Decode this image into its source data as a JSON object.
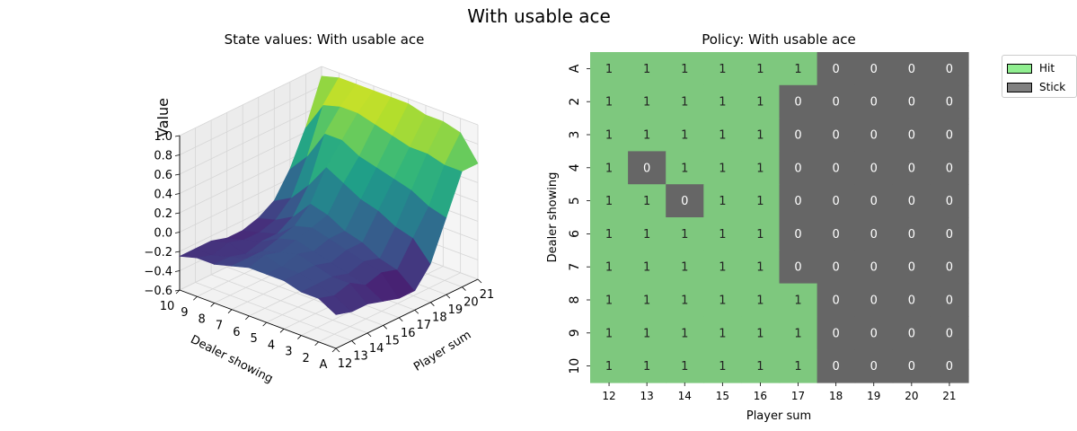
{
  "figure": {
    "suptitle": "With usable ace"
  },
  "chart_data": [
    {
      "type": "surface",
      "title": "State values: With usable ace",
      "xlabel": "Player sum",
      "ylabel": "Dealer showing",
      "zlabel": "Value",
      "colormap": "viridis",
      "x_ticks": [
        "12",
        "13",
        "14",
        "15",
        "16",
        "17",
        "18",
        "19",
        "20",
        "21"
      ],
      "y_ticks": [
        "A",
        "2",
        "3",
        "4",
        "5",
        "6",
        "7",
        "8",
        "9",
        "10"
      ],
      "z_ticks": [
        "−0.6",
        "−0.4",
        "−0.2",
        "0.0",
        "0.2",
        "0.4",
        "0.6",
        "0.8",
        "1.0"
      ],
      "zlim": [
        -0.6,
        1.0
      ],
      "values": [
        [
          -0.25,
          -0.3,
          -0.3,
          -0.35,
          -0.4,
          -0.4,
          -0.2,
          0.2,
          0.6,
          0.6
        ],
        [
          -0.15,
          -0.2,
          -0.15,
          -0.25,
          -0.2,
          -0.25,
          0.0,
          0.25,
          0.6,
          0.85
        ],
        [
          -0.15,
          -0.15,
          -0.15,
          -0.2,
          -0.15,
          -0.2,
          0.05,
          0.35,
          0.65,
          0.9
        ],
        [
          -0.1,
          -0.1,
          -0.1,
          -0.15,
          -0.1,
          -0.1,
          0.15,
          0.4,
          0.65,
          0.9
        ],
        [
          -0.1,
          -0.1,
          -0.05,
          -0.1,
          -0.05,
          -0.05,
          0.2,
          0.45,
          0.7,
          0.95
        ],
        [
          -0.1,
          -0.05,
          -0.1,
          -0.05,
          0.0,
          0.05,
          0.3,
          0.5,
          0.75,
          0.95
        ],
        [
          -0.15,
          -0.15,
          -0.15,
          -0.1,
          -0.05,
          0.1,
          0.4,
          0.6,
          0.8,
          0.95
        ],
        [
          -0.2,
          -0.2,
          -0.25,
          -0.2,
          -0.2,
          -0.1,
          0.15,
          0.6,
          0.8,
          0.95
        ],
        [
          -0.2,
          -0.25,
          -0.2,
          -0.25,
          -0.25,
          -0.2,
          -0.05,
          0.3,
          0.75,
          0.95
        ],
        [
          -0.25,
          -0.25,
          -0.25,
          -0.3,
          -0.3,
          -0.25,
          -0.15,
          0.1,
          0.45,
          0.9
        ]
      ]
    },
    {
      "type": "heatmap",
      "title": "Policy: With usable ace",
      "xlabel": "Player sum",
      "ylabel": "Dealer showing",
      "x": [
        "12",
        "13",
        "14",
        "15",
        "16",
        "17",
        "18",
        "19",
        "20",
        "21"
      ],
      "y": [
        "A",
        "2",
        "3",
        "4",
        "5",
        "6",
        "7",
        "8",
        "9",
        "10"
      ],
      "values": [
        [
          1,
          1,
          1,
          1,
          1,
          1,
          0,
          0,
          0,
          0
        ],
        [
          1,
          1,
          1,
          1,
          1,
          0,
          0,
          0,
          0,
          0
        ],
        [
          1,
          1,
          1,
          1,
          1,
          0,
          0,
          0,
          0,
          0
        ],
        [
          1,
          0,
          1,
          1,
          1,
          0,
          0,
          0,
          0,
          0
        ],
        [
          1,
          1,
          0,
          1,
          1,
          0,
          0,
          0,
          0,
          0
        ],
        [
          1,
          1,
          1,
          1,
          1,
          0,
          0,
          0,
          0,
          0
        ],
        [
          1,
          1,
          1,
          1,
          1,
          0,
          0,
          0,
          0,
          0
        ],
        [
          1,
          1,
          1,
          1,
          1,
          1,
          0,
          0,
          0,
          0
        ],
        [
          1,
          1,
          1,
          1,
          1,
          1,
          0,
          0,
          0,
          0
        ],
        [
          1,
          1,
          1,
          1,
          1,
          1,
          0,
          0,
          0,
          0
        ]
      ],
      "legend": [
        {
          "label": "Hit",
          "color": "#90ee90"
        },
        {
          "label": "Stick",
          "color": "#808080"
        }
      ],
      "legend_position": "top-right",
      "colors": {
        "hit": "#7ec87e",
        "stick": "#666666"
      }
    }
  ]
}
